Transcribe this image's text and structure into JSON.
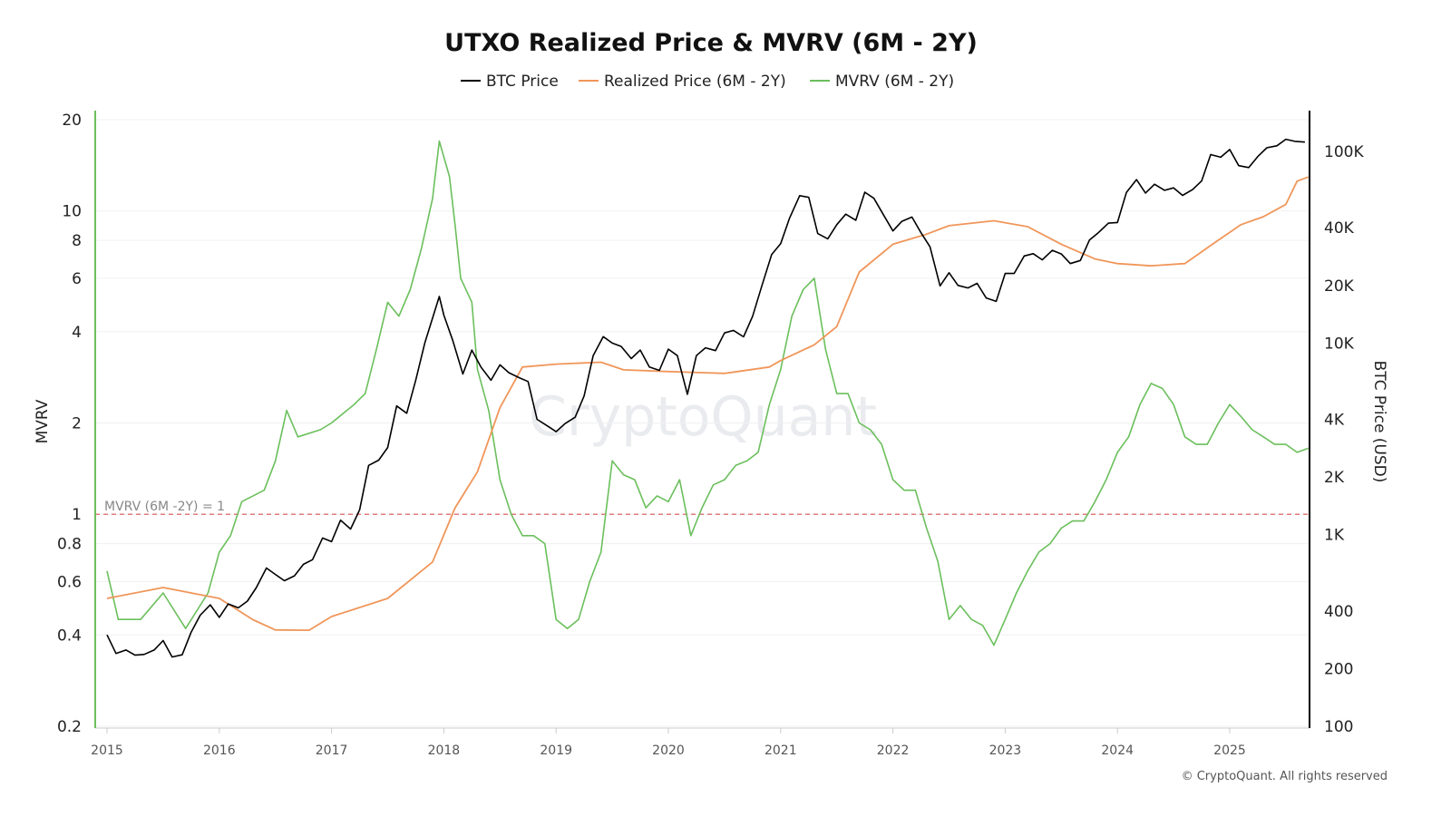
{
  "chart_data": {
    "type": "line",
    "title": "UTXO Realized Price & MVRV (6M - 2Y)",
    "watermark": "CryptoQuant",
    "copyright": "© CryptoQuant. All rights reserved",
    "legend_placement": "top-center",
    "grid": true,
    "x": {
      "ticks": [
        2015,
        2016,
        2017,
        2018,
        2019,
        2020,
        2021,
        2022,
        2023,
        2024,
        2025
      ],
      "range": [
        2014.9,
        2025.7
      ]
    },
    "y_left": {
      "label": "MVRV",
      "scale": "log",
      "range": [
        0.2,
        20
      ],
      "ticks": [
        20,
        10,
        8,
        6,
        4,
        2,
        1,
        0.8,
        0.6,
        0.4,
        0.2
      ],
      "tick_labels": [
        "20",
        "10",
        "8",
        "6",
        "4",
        "2",
        "1",
        "0.8",
        "0.6",
        "0.4",
        "0.2"
      ],
      "color": "#6bbf5c"
    },
    "y_right": {
      "label": "BTC Price (USD)",
      "scale": "log",
      "range": [
        100,
        100000
      ],
      "ticks": [
        100000,
        40000,
        20000,
        10000,
        4000,
        2000,
        1000,
        400,
        200,
        100
      ],
      "tick_labels": [
        "100K",
        "40K",
        "20K",
        "10K",
        "4K",
        "2K",
        "1K",
        "400",
        "200",
        "100"
      ],
      "color": "#000000"
    },
    "reference_line": {
      "label": "MVRV (6M -2Y) = 1",
      "value": 1,
      "color": "#d9534f"
    },
    "series": [
      {
        "name": "BTC Price",
        "axis": "right",
        "color": "#000000",
        "points": [
          [
            2015.0,
            300
          ],
          [
            2015.08,
            240
          ],
          [
            2015.17,
            250
          ],
          [
            2015.25,
            235
          ],
          [
            2015.33,
            237
          ],
          [
            2015.42,
            250
          ],
          [
            2015.5,
            280
          ],
          [
            2015.58,
            230
          ],
          [
            2015.67,
            236
          ],
          [
            2015.75,
            310
          ],
          [
            2015.83,
            380
          ],
          [
            2015.92,
            430
          ],
          [
            2016.0,
            370
          ],
          [
            2016.08,
            435
          ],
          [
            2016.17,
            415
          ],
          [
            2016.25,
            450
          ],
          [
            2016.33,
            530
          ],
          [
            2016.42,
            670
          ],
          [
            2016.5,
            620
          ],
          [
            2016.58,
            575
          ],
          [
            2016.67,
            610
          ],
          [
            2016.75,
            700
          ],
          [
            2016.83,
            740
          ],
          [
            2016.92,
            960
          ],
          [
            2017.0,
            920
          ],
          [
            2017.08,
            1190
          ],
          [
            2017.17,
            1070
          ],
          [
            2017.25,
            1350
          ],
          [
            2017.33,
            2300
          ],
          [
            2017.42,
            2450
          ],
          [
            2017.5,
            2850
          ],
          [
            2017.58,
            4700
          ],
          [
            2017.67,
            4300
          ],
          [
            2017.75,
            6400
          ],
          [
            2017.83,
            10000
          ],
          [
            2017.96,
            17500
          ],
          [
            2018.0,
            14000
          ],
          [
            2018.08,
            10300
          ],
          [
            2018.17,
            6900
          ],
          [
            2018.25,
            9200
          ],
          [
            2018.33,
            7500
          ],
          [
            2018.42,
            6400
          ],
          [
            2018.5,
            7700
          ],
          [
            2018.58,
            7000
          ],
          [
            2018.67,
            6600
          ],
          [
            2018.75,
            6300
          ],
          [
            2018.83,
            4000
          ],
          [
            2018.92,
            3700
          ],
          [
            2019.0,
            3450
          ],
          [
            2019.08,
            3800
          ],
          [
            2019.17,
            4100
          ],
          [
            2019.25,
            5300
          ],
          [
            2019.33,
            8600
          ],
          [
            2019.42,
            10800
          ],
          [
            2019.5,
            10000
          ],
          [
            2019.58,
            9600
          ],
          [
            2019.67,
            8300
          ],
          [
            2019.75,
            9200
          ],
          [
            2019.83,
            7500
          ],
          [
            2019.92,
            7200
          ],
          [
            2020.0,
            9300
          ],
          [
            2020.08,
            8600
          ],
          [
            2020.17,
            5400
          ],
          [
            2020.25,
            8600
          ],
          [
            2020.33,
            9450
          ],
          [
            2020.42,
            9140
          ],
          [
            2020.5,
            11300
          ],
          [
            2020.58,
            11650
          ],
          [
            2020.67,
            10780
          ],
          [
            2020.75,
            13800
          ],
          [
            2020.83,
            19700
          ],
          [
            2020.92,
            29000
          ],
          [
            2021.0,
            33000
          ],
          [
            2021.08,
            45000
          ],
          [
            2021.17,
            58800
          ],
          [
            2021.25,
            57700
          ],
          [
            2021.33,
            37300
          ],
          [
            2021.42,
            35000
          ],
          [
            2021.5,
            41500
          ],
          [
            2021.58,
            47100
          ],
          [
            2021.67,
            43800
          ],
          [
            2021.75,
            61300
          ],
          [
            2021.83,
            57000
          ],
          [
            2021.92,
            46300
          ],
          [
            2022.0,
            38500
          ],
          [
            2022.08,
            43200
          ],
          [
            2022.17,
            45500
          ],
          [
            2022.25,
            37700
          ],
          [
            2022.33,
            31800
          ],
          [
            2022.42,
            19900
          ],
          [
            2022.5,
            23300
          ],
          [
            2022.58,
            20000
          ],
          [
            2022.67,
            19400
          ],
          [
            2022.75,
            20500
          ],
          [
            2022.83,
            17200
          ],
          [
            2022.92,
            16500
          ],
          [
            2023.0,
            23100
          ],
          [
            2023.08,
            23100
          ],
          [
            2023.17,
            28500
          ],
          [
            2023.25,
            29300
          ],
          [
            2023.33,
            27200
          ],
          [
            2023.42,
            30500
          ],
          [
            2023.5,
            29200
          ],
          [
            2023.58,
            26000
          ],
          [
            2023.67,
            27000
          ],
          [
            2023.75,
            34500
          ],
          [
            2023.83,
            37700
          ],
          [
            2023.92,
            42300
          ],
          [
            2024.0,
            42600
          ],
          [
            2024.08,
            61200
          ],
          [
            2024.17,
            71300
          ],
          [
            2024.25,
            60700
          ],
          [
            2024.33,
            67500
          ],
          [
            2024.42,
            62700
          ],
          [
            2024.5,
            64600
          ],
          [
            2024.58,
            59000
          ],
          [
            2024.67,
            63300
          ],
          [
            2024.75,
            70200
          ],
          [
            2024.83,
            96400
          ],
          [
            2024.92,
            93400
          ],
          [
            2025.0,
            102400
          ],
          [
            2025.08,
            84400
          ],
          [
            2025.17,
            82500
          ],
          [
            2025.25,
            94200
          ],
          [
            2025.33,
            104600
          ],
          [
            2025.42,
            107100
          ],
          [
            2025.5,
            115800
          ],
          [
            2025.58,
            113000
          ],
          [
            2025.67,
            112000
          ]
        ]
      },
      {
        "name": "Realized Price (6M - 2Y)",
        "axis": "right",
        "color": "#f0965a",
        "points": [
          [
            2015.0,
            465
          ],
          [
            2015.5,
            530
          ],
          [
            2016.0,
            465
          ],
          [
            2016.3,
            360
          ],
          [
            2016.5,
            318
          ],
          [
            2016.8,
            317
          ],
          [
            2017.0,
            374
          ],
          [
            2017.5,
            465
          ],
          [
            2017.9,
            720
          ],
          [
            2018.1,
            1380
          ],
          [
            2018.3,
            2130
          ],
          [
            2018.5,
            4600
          ],
          [
            2018.7,
            7500
          ],
          [
            2019.0,
            7770
          ],
          [
            2019.4,
            7950
          ],
          [
            2019.6,
            7250
          ],
          [
            2020.0,
            7100
          ],
          [
            2020.5,
            6950
          ],
          [
            2020.9,
            7500
          ],
          [
            2021.0,
            8100
          ],
          [
            2021.3,
            9800
          ],
          [
            2021.5,
            12200
          ],
          [
            2021.7,
            23500
          ],
          [
            2022.0,
            32800
          ],
          [
            2022.3,
            37000
          ],
          [
            2022.5,
            41000
          ],
          [
            2022.9,
            43500
          ],
          [
            2023.2,
            40500
          ],
          [
            2023.5,
            32800
          ],
          [
            2023.8,
            27500
          ],
          [
            2024.0,
            26000
          ],
          [
            2024.3,
            25300
          ],
          [
            2024.6,
            26000
          ],
          [
            2024.9,
            34500
          ],
          [
            2025.1,
            41500
          ],
          [
            2025.3,
            45700
          ],
          [
            2025.5,
            53000
          ],
          [
            2025.6,
            70000
          ],
          [
            2025.7,
            73600
          ]
        ]
      },
      {
        "name": "MVRV (6M - 2Y)",
        "axis": "left",
        "color": "#6bbf5c",
        "points": [
          [
            2015.0,
            0.65
          ],
          [
            2015.1,
            0.45
          ],
          [
            2015.3,
            0.45
          ],
          [
            2015.5,
            0.55
          ],
          [
            2015.7,
            0.42
          ],
          [
            2015.9,
            0.55
          ],
          [
            2016.0,
            0.75
          ],
          [
            2016.1,
            0.85
          ],
          [
            2016.2,
            1.1
          ],
          [
            2016.4,
            1.2
          ],
          [
            2016.5,
            1.5
          ],
          [
            2016.6,
            2.2
          ],
          [
            2016.7,
            1.8
          ],
          [
            2016.9,
            1.9
          ],
          [
            2017.0,
            2.0
          ],
          [
            2017.2,
            2.3
          ],
          [
            2017.3,
            2.5
          ],
          [
            2017.4,
            3.5
          ],
          [
            2017.5,
            5.0
          ],
          [
            2017.6,
            4.5
          ],
          [
            2017.7,
            5.5
          ],
          [
            2017.8,
            7.5
          ],
          [
            2017.9,
            11
          ],
          [
            2017.96,
            17
          ],
          [
            2018.05,
            13
          ],
          [
            2018.1,
            9
          ],
          [
            2018.15,
            6
          ],
          [
            2018.25,
            5
          ],
          [
            2018.3,
            3
          ],
          [
            2018.4,
            2.2
          ],
          [
            2018.5,
            1.3
          ],
          [
            2018.6,
            1.0
          ],
          [
            2018.7,
            0.85
          ],
          [
            2018.8,
            0.85
          ],
          [
            2018.9,
            0.8
          ],
          [
            2019.0,
            0.45
          ],
          [
            2019.1,
            0.42
          ],
          [
            2019.2,
            0.45
          ],
          [
            2019.3,
            0.6
          ],
          [
            2019.4,
            0.75
          ],
          [
            2019.5,
            1.5
          ],
          [
            2019.6,
            1.35
          ],
          [
            2019.7,
            1.3
          ],
          [
            2019.8,
            1.05
          ],
          [
            2019.9,
            1.15
          ],
          [
            2020.0,
            1.1
          ],
          [
            2020.1,
            1.3
          ],
          [
            2020.2,
            0.85
          ],
          [
            2020.3,
            1.05
          ],
          [
            2020.4,
            1.25
          ],
          [
            2020.5,
            1.3
          ],
          [
            2020.6,
            1.45
          ],
          [
            2020.7,
            1.5
          ],
          [
            2020.8,
            1.6
          ],
          [
            2020.9,
            2.3
          ],
          [
            2021.0,
            3.0
          ],
          [
            2021.1,
            4.5
          ],
          [
            2021.2,
            5.5
          ],
          [
            2021.3,
            6.0
          ],
          [
            2021.4,
            3.5
          ],
          [
            2021.5,
            2.5
          ],
          [
            2021.6,
            2.5
          ],
          [
            2021.7,
            2.0
          ],
          [
            2021.8,
            1.9
          ],
          [
            2021.9,
            1.7
          ],
          [
            2022.0,
            1.3
          ],
          [
            2022.1,
            1.2
          ],
          [
            2022.2,
            1.2
          ],
          [
            2022.3,
            0.9
          ],
          [
            2022.4,
            0.7
          ],
          [
            2022.5,
            0.45
          ],
          [
            2022.6,
            0.5
          ],
          [
            2022.7,
            0.45
          ],
          [
            2022.8,
            0.43
          ],
          [
            2022.9,
            0.37
          ],
          [
            2023.0,
            0.45
          ],
          [
            2023.1,
            0.55
          ],
          [
            2023.2,
            0.65
          ],
          [
            2023.3,
            0.75
          ],
          [
            2023.4,
            0.8
          ],
          [
            2023.5,
            0.9
          ],
          [
            2023.6,
            0.95
          ],
          [
            2023.7,
            0.95
          ],
          [
            2023.8,
            1.1
          ],
          [
            2023.9,
            1.3
          ],
          [
            2024.0,
            1.6
          ],
          [
            2024.1,
            1.8
          ],
          [
            2024.2,
            2.3
          ],
          [
            2024.3,
            2.7
          ],
          [
            2024.4,
            2.6
          ],
          [
            2024.5,
            2.3
          ],
          [
            2024.6,
            1.8
          ],
          [
            2024.7,
            1.7
          ],
          [
            2024.8,
            1.7
          ],
          [
            2024.9,
            2.0
          ],
          [
            2025.0,
            2.3
          ],
          [
            2025.1,
            2.1
          ],
          [
            2025.2,
            1.9
          ],
          [
            2025.3,
            1.8
          ],
          [
            2025.4,
            1.7
          ],
          [
            2025.5,
            1.7
          ],
          [
            2025.6,
            1.6
          ],
          [
            2025.7,
            1.65
          ]
        ]
      }
    ]
  }
}
